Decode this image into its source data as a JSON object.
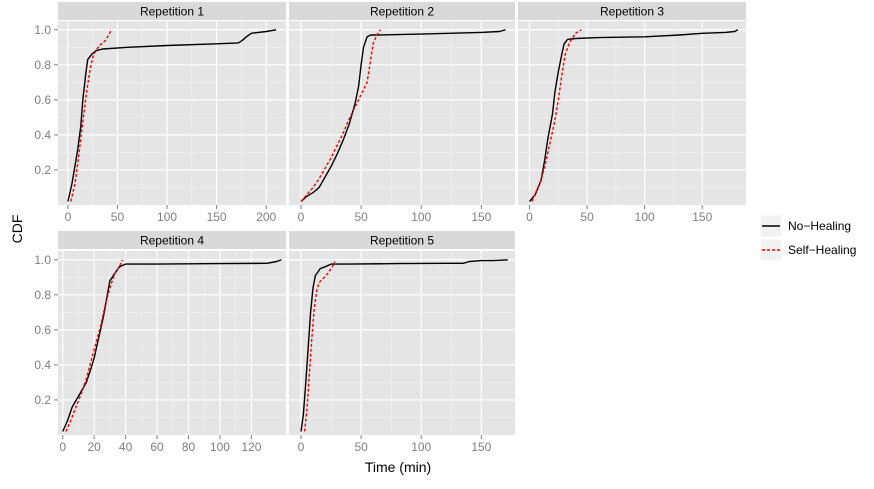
{
  "chart_data": {
    "type": "line",
    "ylabel": "CDF",
    "xlabel": "Time (min)",
    "ylim": [
      0,
      1.05
    ],
    "y_ticks": [
      0.2,
      0.4,
      0.6,
      0.8,
      1.0
    ],
    "y_tick_labels": [
      "0.2",
      "0.4",
      "0.6",
      "0.8",
      "1.0"
    ],
    "grid": true,
    "legend": {
      "placement": "right",
      "entries": [
        {
          "name": "No−Healing",
          "color": "#000000",
          "dash": "solid"
        },
        {
          "name": "Self−Healing",
          "color": "#ff0000",
          "dash": "dashed"
        }
      ]
    },
    "panels": [
      {
        "title": "Repetition 1",
        "xlim": [
          -10,
          220
        ],
        "x_ticks": [
          0,
          50,
          100,
          150,
          200
        ],
        "x_tick_labels": [
          "0",
          "50",
          "100",
          "150",
          "200"
        ],
        "series": [
          {
            "name": "No−Healing",
            "x": [
              0,
              4,
              7,
              10,
              13,
              15,
              18,
              20,
              24,
              28,
              35,
              60,
              100,
              150,
              172,
              176,
              180,
              185,
              200,
              210
            ],
            "y": [
              0.02,
              0.12,
              0.22,
              0.32,
              0.45,
              0.6,
              0.75,
              0.83,
              0.86,
              0.88,
              0.89,
              0.9,
              0.91,
              0.92,
              0.925,
              0.94,
              0.96,
              0.98,
              0.99,
              1.0
            ]
          },
          {
            "name": "Self−Healing",
            "x": [
              3,
              7,
              10,
              13,
              16,
              19,
              22,
              25,
              28,
              32,
              38,
              44
            ],
            "y": [
              0.02,
              0.12,
              0.24,
              0.38,
              0.52,
              0.65,
              0.76,
              0.84,
              0.88,
              0.91,
              0.94,
              1.0
            ]
          }
        ]
      },
      {
        "title": "Repetition 2",
        "xlim": [
          -10,
          178
        ],
        "x_ticks": [
          0,
          50,
          100,
          150
        ],
        "x_tick_labels": [
          "0",
          "50",
          "100",
          "150"
        ],
        "series": [
          {
            "name": "No−Healing",
            "x": [
              0,
              5,
              10,
              15,
              20,
              25,
              30,
              35,
              40,
              45,
              48,
              50,
              52,
              55,
              58,
              65,
              100,
              150,
              165,
              170
            ],
            "y": [
              0.02,
              0.05,
              0.07,
              0.1,
              0.16,
              0.22,
              0.29,
              0.37,
              0.46,
              0.58,
              0.68,
              0.8,
              0.9,
              0.96,
              0.97,
              0.97,
              0.975,
              0.985,
              0.99,
              1.0
            ]
          },
          {
            "name": "Self−Healing",
            "x": [
              0,
              5,
              10,
              15,
              20,
              25,
              30,
              35,
              40,
              45,
              50,
              55,
              58,
              60,
              63,
              66
            ],
            "y": [
              0.02,
              0.06,
              0.1,
              0.15,
              0.21,
              0.27,
              0.34,
              0.41,
              0.49,
              0.56,
              0.63,
              0.7,
              0.83,
              0.92,
              0.97,
              1.0
            ]
          }
        ]
      },
      {
        "title": "Repetition 3",
        "xlim": [
          -10,
          188
        ],
        "x_ticks": [
          0,
          50,
          100,
          150
        ],
        "x_tick_labels": [
          "0",
          "50",
          "100",
          "150"
        ],
        "series": [
          {
            "name": "No−Healing",
            "x": [
              0,
              5,
              10,
              13,
              16,
              20,
              22,
              25,
              28,
              30,
              33,
              40,
              60,
              100,
              130,
              150,
              170,
              178,
              181
            ],
            "y": [
              0.02,
              0.06,
              0.14,
              0.25,
              0.38,
              0.52,
              0.64,
              0.76,
              0.86,
              0.92,
              0.945,
              0.95,
              0.955,
              0.96,
              0.97,
              0.98,
              0.985,
              0.99,
              1.0
            ]
          },
          {
            "name": "Self−Healing",
            "x": [
              2,
              6,
              10,
              14,
              18,
              22,
              25,
              28,
              31,
              35,
              40,
              45
            ],
            "y": [
              0.02,
              0.08,
              0.14,
              0.24,
              0.36,
              0.48,
              0.6,
              0.74,
              0.86,
              0.93,
              0.98,
              1.0
            ]
          }
        ]
      },
      {
        "title": "Repetition 4",
        "xlim": [
          -3,
          142
        ],
        "x_ticks": [
          0,
          20,
          40,
          60,
          80,
          100,
          120
        ],
        "x_tick_labels": [
          "0",
          "20",
          "40",
          "60",
          "80",
          "100",
          "120"
        ],
        "series": [
          {
            "name": "No−Healing",
            "x": [
              0,
              3,
              6,
              10,
              15,
              18,
              20,
              22,
              24,
              26,
              28,
              30,
              33,
              36,
              40,
              60,
              100,
              130,
              136,
              139
            ],
            "y": [
              0.02,
              0.08,
              0.16,
              0.22,
              0.3,
              0.38,
              0.44,
              0.52,
              0.6,
              0.68,
              0.78,
              0.88,
              0.92,
              0.96,
              0.975,
              0.975,
              0.978,
              0.98,
              0.99,
              1.0
            ]
          },
          {
            "name": "Self−Healing",
            "x": [
              2,
              5,
              8,
              12,
              15,
              18,
              21,
              24,
              27,
              30,
              33,
              36,
              38
            ],
            "y": [
              0.02,
              0.08,
              0.15,
              0.24,
              0.32,
              0.42,
              0.52,
              0.62,
              0.74,
              0.84,
              0.92,
              0.96,
              1.0
            ]
          }
        ]
      },
      {
        "title": "Repetition 5",
        "xlim": [
          -10,
          178
        ],
        "x_ticks": [
          0,
          50,
          100,
          150
        ],
        "x_tick_labels": [
          "0",
          "50",
          "100",
          "150"
        ],
        "series": [
          {
            "name": "No−Healing",
            "x": [
              0,
              2,
              4,
              6,
              8,
              10,
              12,
              14,
              16,
              20,
              25,
              40,
              80,
              120,
              135,
              140,
              150,
              160,
              172
            ],
            "y": [
              0.02,
              0.12,
              0.3,
              0.5,
              0.7,
              0.84,
              0.91,
              0.93,
              0.95,
              0.96,
              0.975,
              0.975,
              0.978,
              0.98,
              0.98,
              0.99,
              0.995,
              0.995,
              1.0
            ]
          },
          {
            "name": "Self−Healing",
            "x": [
              3,
              5,
              7,
              9,
              11,
              13,
              15,
              18,
              22,
              26,
              28
            ],
            "y": [
              0.02,
              0.15,
              0.35,
              0.55,
              0.72,
              0.82,
              0.87,
              0.89,
              0.92,
              0.96,
              0.99
            ]
          }
        ]
      }
    ]
  }
}
